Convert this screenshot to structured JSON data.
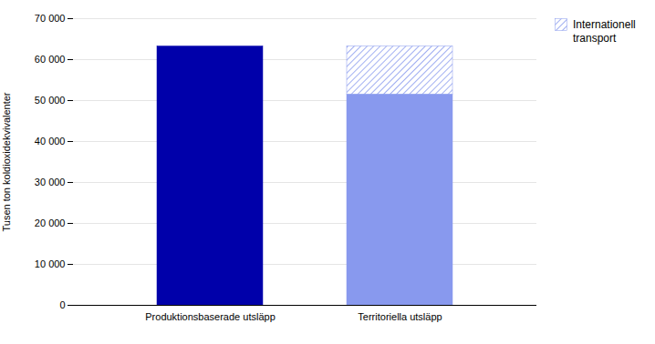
{
  "chart_data": {
    "type": "bar",
    "stacked": true,
    "categories": [
      "Produktionsbaserade utsläpp",
      "Territoriella utsläpp"
    ],
    "series": [
      {
        "colors": [
          "#0000AA",
          "#8899EE"
        ],
        "values": [
          63200,
          51500
        ]
      },
      {
        "name": "Internationell\ntransport",
        "color": "#8899EE",
        "values": [
          null,
          11700
        ]
      }
    ],
    "ylabel": "Tusen ton koldioxidekvivalenter",
    "ylim": [
      0,
      70000
    ],
    "yticks": [
      0,
      {
        "value": 10000,
        "label": "10 000"
      },
      {
        "value": 20000,
        "label": "20 000"
      },
      {
        "value": 30000,
        "label": "30 000"
      },
      {
        "value": 40000,
        "label": "40 000"
      },
      {
        "value": 50000,
        "label": "50 000"
      },
      {
        "value": 60000,
        "label": "60 000"
      },
      {
        "value": 70000,
        "label": "70 000"
      }
    ],
    "grid": true,
    "legend": "right"
  }
}
